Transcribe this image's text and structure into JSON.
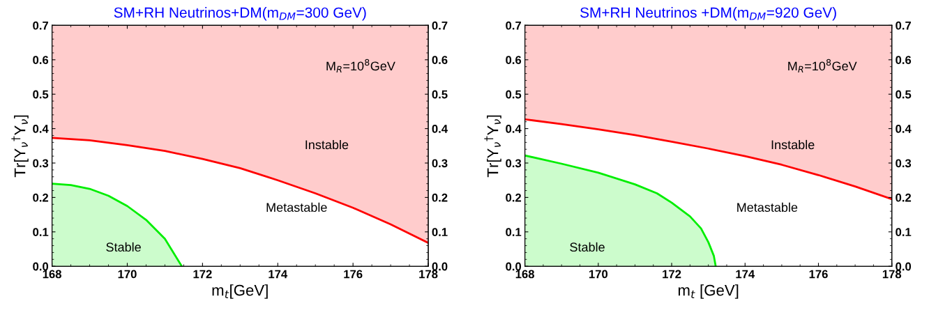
{
  "chart_data": [
    {
      "type": "line",
      "title": "SM+RH Neutrinos+DM(m$_{DM}$=300 GeV)",
      "xlabel": "m$_{t}$[GeV]",
      "ylabel": "Tr[Y$_{ν}$$^{†}$Y$_{ν}$]",
      "xlim": [
        168,
        178
      ],
      "xticks": [
        168,
        170,
        172,
        174,
        176,
        178
      ],
      "ylim": [
        0,
        0.7
      ],
      "yticks": [
        {
          "value": 0,
          "label": "0.0"
        },
        0.1,
        0.2,
        0.3,
        0.4,
        0.5,
        0.6,
        0.7
      ],
      "y2lim": [
        0,
        0.7
      ],
      "y2ticks": [
        {
          "value": 0,
          "label": "0.0"
        },
        0.1,
        0.2,
        0.3,
        0.4,
        0.5,
        0.6,
        0.7
      ],
      "grid": false,
      "legend": false,
      "series": [
        {
          "color": "#ff0000",
          "x": [
            168,
            169,
            170,
            171,
            172,
            173,
            174,
            175,
            176,
            177,
            178
          ],
          "values": [
            0.373,
            0.366,
            0.352,
            0.335,
            0.312,
            0.285,
            0.25,
            0.212,
            0.17,
            0.122,
            0.068
          ],
          "lower": [
            0.373,
            0.366,
            0.352,
            0.335,
            0.312,
            0.285,
            0.25,
            0.212,
            0.17,
            0.122,
            0.068
          ],
          "upper": [
            0.7,
            0.7,
            0.7,
            0.7,
            0.7,
            0.7,
            0.7,
            0.7,
            0.7,
            0.7,
            0.7
          ]
        },
        {
          "type": "area",
          "color": "#00ee00",
          "x": [
            168,
            168.5,
            169,
            169.5,
            170,
            170.5,
            171,
            171.45
          ],
          "values": [
            0.24,
            0.236,
            0.225,
            0.205,
            0.175,
            0.135,
            0.08,
            0.0
          ]
        }
      ],
      "annotations": [
        "M$_{R}$=10$^{8}$GeV",
        "Instable",
        "Metastable",
        "Stable"
      ]
    },
    {
      "type": "line",
      "title": "SM+RH Neutrinos +DM(m$_{DM}$=920 GeV)",
      "xlabel": "m$_{t}$ [GeV]",
      "ylabel": "Tr[Y$_{ν}$$^{†}$Y$_{ν}$]",
      "xlim": [
        168,
        178
      ],
      "xticks": [
        168,
        170,
        172,
        174,
        176,
        178
      ],
      "ylim": [
        0,
        0.7
      ],
      "yticks": [
        {
          "value": 0,
          "label": "0.0"
        },
        0.1,
        0.2,
        0.3,
        0.4,
        0.5,
        0.6,
        0.7
      ],
      "y2lim": [
        0,
        0.7
      ],
      "y2ticks": [
        {
          "value": 0,
          "label": "0.0"
        },
        0.1,
        0.2,
        0.3,
        0.4,
        0.5,
        0.6,
        0.7
      ],
      "grid": false,
      "legend": false,
      "series": [
        {
          "color": "#ff0000",
          "x": [
            168,
            169,
            170,
            171,
            172,
            173,
            174,
            175,
            176,
            177,
            178
          ],
          "values": [
            0.427,
            0.413,
            0.398,
            0.381,
            0.362,
            0.342,
            0.32,
            0.295,
            0.265,
            0.232,
            0.195
          ],
          "lower": [
            0.427,
            0.413,
            0.398,
            0.381,
            0.362,
            0.342,
            0.32,
            0.295,
            0.265,
            0.232,
            0.195
          ],
          "upper": [
            0.7,
            0.7,
            0.7,
            0.7,
            0.7,
            0.7,
            0.7,
            0.7,
            0.7,
            0.7,
            0.7
          ]
        },
        {
          "type": "area",
          "color": "#00ee00",
          "x": [
            168,
            169,
            170,
            171,
            171.6,
            172,
            172.5,
            172.8,
            173,
            173.15,
            173.2
          ],
          "values": [
            0.322,
            0.298,
            0.272,
            0.238,
            0.212,
            0.185,
            0.145,
            0.11,
            0.07,
            0.03,
            0.0
          ]
        }
      ],
      "annotations": [
        "M$_{R}$=10$^{8}$GeV",
        "Instable",
        "Metastable",
        "Stable"
      ]
    }
  ]
}
